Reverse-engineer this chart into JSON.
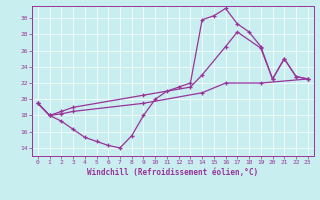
{
  "xlabel": "Windchill (Refroidissement éolien,°C)",
  "bg_color": "#c8eef0",
  "line_color": "#993399",
  "xlim": [
    -0.5,
    23.5
  ],
  "ylim": [
    13.0,
    31.5
  ],
  "yticks": [
    14,
    16,
    18,
    20,
    22,
    24,
    26,
    28,
    30
  ],
  "xticks": [
    0,
    1,
    2,
    3,
    4,
    5,
    6,
    7,
    8,
    9,
    10,
    11,
    12,
    13,
    14,
    15,
    16,
    17,
    18,
    19,
    20,
    21,
    22,
    23
  ],
  "line1_x": [
    0,
    1,
    2,
    3,
    4,
    5,
    6,
    7,
    8,
    9,
    10,
    11,
    12,
    13,
    14,
    15,
    16,
    17,
    18,
    19,
    20,
    21,
    22,
    23
  ],
  "line1_y": [
    19.5,
    18.0,
    17.3,
    16.3,
    15.3,
    14.8,
    14.3,
    14.0,
    15.5,
    18.0,
    20.0,
    21.0,
    21.5,
    22.0,
    29.8,
    30.3,
    31.2,
    29.3,
    28.3,
    26.5,
    22.5,
    25.0,
    22.8,
    22.5
  ],
  "line2_x": [
    0,
    1,
    2,
    3,
    9,
    13,
    14,
    16,
    17,
    19,
    20,
    21,
    22,
    23
  ],
  "line2_y": [
    19.5,
    18.0,
    18.5,
    19.0,
    20.5,
    21.5,
    23.0,
    26.5,
    28.3,
    26.3,
    22.5,
    25.0,
    22.8,
    22.5
  ],
  "line3_x": [
    0,
    1,
    2,
    3,
    9,
    14,
    16,
    19,
    23
  ],
  "line3_y": [
    19.5,
    18.0,
    18.2,
    18.5,
    19.5,
    20.8,
    22.0,
    22.0,
    22.5
  ]
}
